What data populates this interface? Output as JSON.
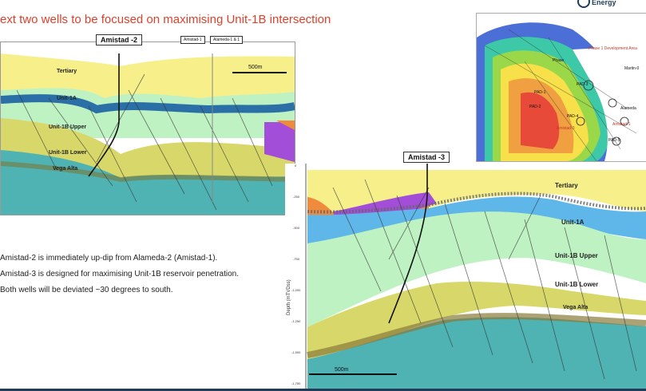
{
  "title": "ext two wells to be focused on maximising Unit-1B intersection",
  "logo": {
    "text": "Energy"
  },
  "left_section": {
    "well_label": "Amistad -2",
    "well_label_right_a": "Amistad-1",
    "well_label_right_b": "Alameda-1 & 1",
    "scale_label": "500m",
    "units": [
      "Tertiary",
      "Unit-1A",
      "Unit-1B Upper",
      "Unit-1B Lower",
      "Vega Alta"
    ]
  },
  "right_section": {
    "well_label": "Amistad -3",
    "axis_label": "Depth (mTVDss)",
    "depth_ticks": [
      "0",
      "-250",
      "-500",
      "-750",
      "-1,000",
      "-1,250",
      "-1,500",
      "-1,750"
    ],
    "scale_label": "500m",
    "units": [
      "Tertiary",
      "Unit-1A",
      "Unit-1B Upper",
      "Unit-1B Lower",
      "Vega Alta"
    ]
  },
  "map": {
    "labels": [
      "Phase 1 Development Area",
      "Martin-0",
      "PAD-1",
      "PAD-2",
      "PAD-3",
      "PAD-4",
      "PAD-5",
      "Alameda",
      "Amistad-1",
      "Amistad-3",
      "Phase"
    ]
  },
  "bullets": [
    "Amistad-2 is immediately up-dip from Alameda-2 (Amistad-1).",
    "Amistad-3 is designed for maximising Unit-1B reservoir penetration.",
    "Both wells will be deviated ~30 degrees to south."
  ],
  "colors": {
    "title": "#e0402a",
    "tertiary": "#f7f08a",
    "unit_1a": "#5fb6e8",
    "unit_1b_upper": "#bff2c2",
    "unit_1b_lower": "#d8d86a",
    "vega_alta": "#4fb3b3",
    "orange": "#f08a3c",
    "purple": "#a24ed8"
  }
}
